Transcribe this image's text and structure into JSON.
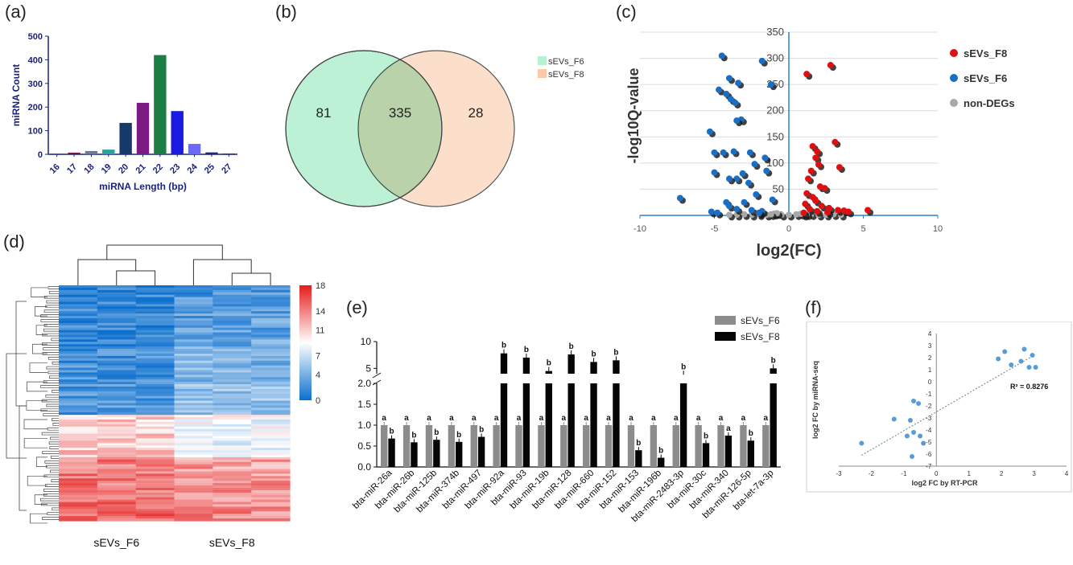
{
  "panels": {
    "a": "(a)",
    "b": "(b)",
    "c": "(c)",
    "d": "(d)",
    "e": "(e)",
    "f": "(f)"
  },
  "chart_data": [
    {
      "id": "a",
      "type": "bar",
      "xlabel": "miRNA Length (bp)",
      "ylabel": "miRNA Count",
      "categories": [
        "16",
        "17",
        "18",
        "19",
        "20",
        "21",
        "22",
        "23",
        "24",
        "25",
        "27"
      ],
      "values": [
        2,
        7,
        14,
        20,
        133,
        218,
        420,
        183,
        44,
        8,
        3
      ],
      "colors": [
        "#1a2a6c",
        "#7a1040",
        "#6f7a8a",
        "#2aa39a",
        "#173a6a",
        "#7b1a80",
        "#1b7f45",
        "#1a1ae0",
        "#6a6af5",
        "#1a2a6c",
        "#1a2a6c"
      ],
      "ylim": [
        0,
        500
      ],
      "yticks": [
        0,
        100,
        200,
        300,
        400,
        500
      ]
    },
    {
      "id": "b",
      "type": "venn",
      "sets": [
        {
          "name": "sEVs_F6",
          "only": 81,
          "color": "#b8f0d4"
        },
        {
          "name": "sEVs_F8",
          "only": 28,
          "color": "#f9c9a8"
        }
      ],
      "intersection": 335
    },
    {
      "id": "c",
      "type": "scatter",
      "xlabel": "log2(FC)",
      "ylabel": "-log10Q-value",
      "xlim": [
        -10,
        10
      ],
      "ylim": [
        0,
        350
      ],
      "xticks": [
        -10,
        -5,
        0,
        5,
        10
      ],
      "yticks": [
        0,
        50,
        100,
        150,
        200,
        250,
        300,
        350
      ],
      "series": [
        {
          "name": "sEVs_F8",
          "color": "#e01010",
          "points": [
            [
              1.2,
              270
            ],
            [
              2.8,
              287
            ],
            [
              3.1,
              140
            ],
            [
              3.4,
              92
            ],
            [
              1.6,
              132
            ],
            [
              1.9,
              122
            ],
            [
              1.8,
              110
            ],
            [
              2.0,
              97
            ],
            [
              1.5,
              85
            ],
            [
              1.3,
              70
            ],
            [
              2.1,
              55
            ],
            [
              2.4,
              52
            ],
            [
              1.2,
              42
            ],
            [
              1.6,
              35
            ],
            [
              1.8,
              28
            ],
            [
              1.1,
              22
            ],
            [
              2.2,
              18
            ],
            [
              2.7,
              14
            ],
            [
              3.3,
              10
            ],
            [
              3.7,
              9
            ],
            [
              5.3,
              10
            ],
            [
              4.0,
              7
            ],
            [
              1.4,
              12
            ],
            [
              1.9,
              8
            ],
            [
              2.6,
              6
            ],
            [
              1.0,
              5
            ]
          ]
        },
        {
          "name": "sEVs_F6",
          "color": "#1a6fc4",
          "points": [
            [
              -4.5,
              305
            ],
            [
              -1.8,
              295
            ],
            [
              -4.0,
              262
            ],
            [
              -3.4,
              253
            ],
            [
              -1.2,
              250
            ],
            [
              -4.7,
              240
            ],
            [
              -4.2,
              232
            ],
            [
              -3.9,
              222
            ],
            [
              -3.6,
              215
            ],
            [
              -3.2,
              183
            ],
            [
              -3.5,
              181
            ],
            [
              -5.3,
              160
            ],
            [
              -5.0,
              120
            ],
            [
              -4.4,
              120
            ],
            [
              -3.7,
              122
            ],
            [
              -2.6,
              120
            ],
            [
              -1.6,
              110
            ],
            [
              -2.3,
              98
            ],
            [
              -5.0,
              82
            ],
            [
              -3.1,
              80
            ],
            [
              -3.5,
              70
            ],
            [
              -4.0,
              70
            ],
            [
              -2.7,
              62
            ],
            [
              -1.5,
              85
            ],
            [
              -2.2,
              40
            ],
            [
              -1.1,
              30
            ],
            [
              -3.0,
              25
            ],
            [
              -4.2,
              25
            ],
            [
              -7.3,
              33
            ],
            [
              -4.0,
              18
            ],
            [
              -3.5,
              12
            ],
            [
              -2.5,
              10
            ],
            [
              -1.8,
              8
            ],
            [
              -5.2,
              7
            ],
            [
              -4.8,
              5
            ],
            [
              -2.0,
              5
            ]
          ]
        },
        {
          "name": "non-DEGs",
          "color": "#a8a8a8",
          "points": [
            [
              -2.0,
              2
            ],
            [
              -1.5,
              1
            ],
            [
              -1.0,
              3
            ],
            [
              -0.5,
              1
            ],
            [
              0,
              1
            ],
            [
              0.5,
              2
            ],
            [
              1.0,
              1
            ],
            [
              1.5,
              2
            ],
            [
              2.0,
              1
            ],
            [
              -2.5,
              1
            ],
            [
              -3.0,
              2
            ],
            [
              2.5,
              1
            ],
            [
              3.0,
              2
            ],
            [
              -0.8,
              4
            ],
            [
              0.8,
              3
            ],
            [
              -1.2,
              2
            ],
            [
              1.2,
              2
            ],
            [
              -3.5,
              1
            ],
            [
              3.5,
              1
            ],
            [
              -4.0,
              1
            ]
          ]
        }
      ]
    },
    {
      "id": "d",
      "type": "heatmap",
      "columns": [
        "sEVs_F6",
        "sEVs_F8"
      ],
      "colorbar_ticks": [
        0,
        4,
        7,
        11,
        14,
        18
      ],
      "colors": [
        "#0b6fce",
        "#ffffff",
        "#e61c1c"
      ]
    },
    {
      "id": "e",
      "type": "bar",
      "categories": [
        "bta-miR-26a",
        "bta-miR-26b",
        "bta-miR-125b",
        "bta-miR-374b",
        "bta-miR-497",
        "bta-miR-92a",
        "bta-miR-93",
        "bta-miR-19b",
        "bta-miR-128",
        "bta-miR-660",
        "bta-miR-152",
        "bta-miR-153",
        "bta-miR-196b",
        "bta-miR-2483-3p",
        "bta-miR-30c",
        "bta-miR-340",
        "bta-miR-126-5p",
        "bta-let-7a-3p"
      ],
      "series": [
        {
          "name": "sEVs_F6",
          "color": "#8c8c8c",
          "values": [
            1,
            1,
            1,
            1,
            1,
            1,
            1,
            1,
            1,
            1,
            1,
            1,
            1,
            1,
            1,
            1,
            1,
            1
          ],
          "labels": [
            "a",
            "a",
            "a",
            "a",
            "a",
            "a",
            "a",
            "a",
            "a",
            "a",
            "a",
            "a",
            "a",
            "a",
            "a",
            "a",
            "a",
            "a"
          ]
        },
        {
          "name": "sEVs_F8",
          "color": "#050505",
          "values": [
            0.68,
            0.59,
            0.65,
            0.6,
            0.72,
            7.8,
            7.0,
            4.5,
            7.6,
            6.2,
            6.5,
            0.4,
            0.22,
            3.8,
            0.57,
            0.75,
            0.63,
            5.0
          ],
          "labels": [
            "b",
            "b",
            "b",
            "b",
            "b",
            "b",
            "b",
            "b",
            "b",
            "b",
            "b",
            "b",
            "b",
            "b",
            "b",
            "a",
            "b",
            "b"
          ]
        }
      ],
      "yticks_lower": [
        "0.0",
        "0.5",
        "1.0",
        "1.5",
        "2.0"
      ],
      "yticks_upper": [
        "5",
        "10"
      ],
      "ybreak": [
        2,
        4
      ]
    },
    {
      "id": "f",
      "type": "scatter",
      "xlabel": "log2 FC by RT-PCR",
      "ylabel": "log2 FC by miRNA-seq",
      "xlim": [
        -3,
        4
      ],
      "ylim": [
        -7,
        4
      ],
      "xticks": [
        -3,
        -2,
        -1,
        0,
        1,
        2,
        3,
        4
      ],
      "yticks": [
        -7,
        -6,
        -5,
        -4,
        -3,
        -2,
        -1,
        0,
        1,
        2,
        3,
        4
      ],
      "annotation": "R² = 0.8276",
      "points": [
        [
          -2.3,
          -5.1
        ],
        [
          -1.3,
          -3.1
        ],
        [
          -0.8,
          -3.2
        ],
        [
          -0.7,
          -1.6
        ],
        [
          -0.55,
          -1.8
        ],
        [
          -0.9,
          -4.5
        ],
        [
          -0.7,
          -4.2
        ],
        [
          -0.5,
          -4.5
        ],
        [
          -0.4,
          -5.1
        ],
        [
          -0.75,
          -6.2
        ],
        [
          1.9,
          1.9
        ],
        [
          2.1,
          2.5
        ],
        [
          2.3,
          1.4
        ],
        [
          2.6,
          1.7
        ],
        [
          2.7,
          2.7
        ],
        [
          2.85,
          1.2
        ],
        [
          2.95,
          2.2
        ],
        [
          3.05,
          1.2
        ]
      ],
      "trend": [
        [
          -2.3,
          -6.1
        ],
        [
          3.0,
          2.2
        ]
      ],
      "point_color": "#5b9bd5"
    }
  ]
}
